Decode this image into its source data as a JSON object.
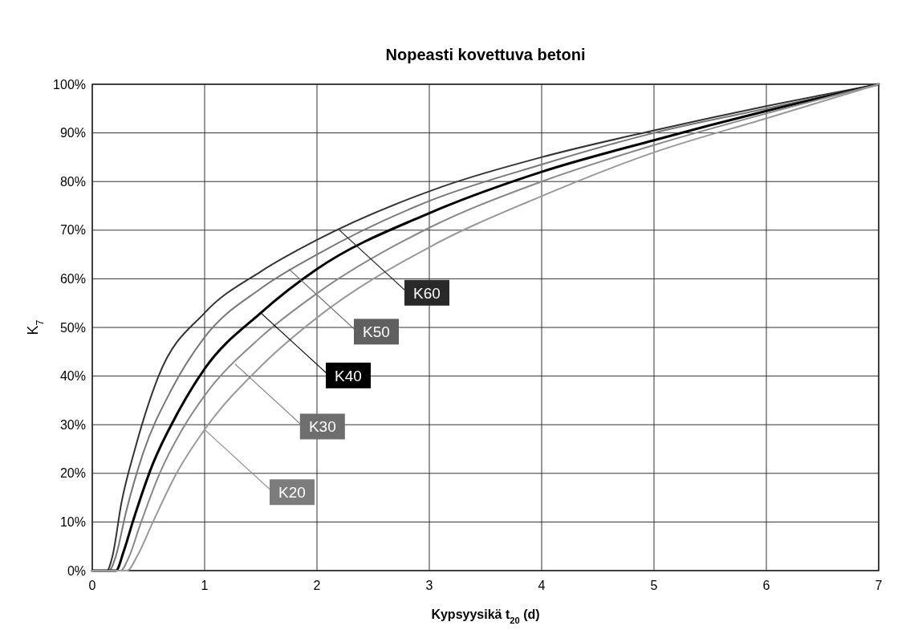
{
  "chart_data": {
    "type": "line",
    "title": "Nopeasti kovettuva betoni",
    "xlabel": "Kypsyysikä t$_{20}$ (d)",
    "ylabel": "K$_{7}$",
    "xlim": [
      0,
      7
    ],
    "xticks": [
      0,
      1,
      2,
      3,
      4,
      5,
      6,
      7
    ],
    "ylim": [
      0,
      100
    ],
    "yticks": [
      {
        "value": 0,
        "label": "0%"
      },
      {
        "value": 10,
        "label": "10%"
      },
      {
        "value": 20,
        "label": "20%"
      },
      {
        "value": 30,
        "label": "30%"
      },
      {
        "value": 40,
        "label": "40%"
      },
      {
        "value": 50,
        "label": "50%"
      },
      {
        "value": 60,
        "label": "60%"
      },
      {
        "value": 70,
        "label": "70%"
      },
      {
        "value": 80,
        "label": "80%"
      },
      {
        "value": 90,
        "label": "90%"
      },
      {
        "value": 100,
        "label": "100%"
      }
    ],
    "grid": true,
    "line_style": "solid",
    "marker": "none",
    "series": [
      {
        "color": "#333333",
        "x": [
          0,
          0.13,
          0.18,
          0.26,
          0.38,
          0.59,
          1,
          1.5,
          2,
          3,
          4,
          5,
          6,
          7
        ],
        "values": [
          0,
          0,
          3,
          14,
          25,
          40,
          53,
          61.5,
          68,
          78,
          85,
          90.5,
          95.5,
          100
        ]
      },
      {
        "color": "#777777",
        "x": [
          0,
          0.15,
          0.21,
          0.3,
          0.45,
          0.7,
          1,
          1.5,
          2,
          3,
          4,
          5,
          6,
          7
        ],
        "values": [
          0,
          0,
          3,
          12,
          24,
          37,
          48,
          58,
          65,
          76,
          83.5,
          90,
          95,
          100
        ]
      },
      {
        "color": "#000000",
        "x": [
          0,
          0.21,
          0.28,
          0.36,
          0.54,
          0.75,
          1,
          1.5,
          2,
          3,
          4,
          5,
          6,
          7
        ],
        "values": [
          0,
          0,
          4,
          10,
          22,
          32,
          41.5,
          53,
          62,
          73.5,
          82,
          88.5,
          94.5,
          100
        ]
      },
      {
        "color": "#888888",
        "x": [
          0,
          0.25,
          0.33,
          0.42,
          0.6,
          0.8,
          1,
          1.5,
          2,
          3,
          4,
          5,
          6,
          7
        ],
        "values": [
          0,
          0,
          3,
          9,
          20,
          29,
          36,
          48,
          57,
          70.5,
          80,
          87.5,
          94,
          100
        ]
      },
      {
        "color": "#999999",
        "x": [
          0,
          0.31,
          0.4,
          0.54,
          0.75,
          1,
          1.5,
          2,
          3,
          4,
          5,
          6,
          7
        ],
        "values": [
          0,
          0,
          3,
          10,
          20,
          29,
          42,
          52,
          66.5,
          77,
          86,
          93,
          100
        ]
      }
    ],
    "annotations": [
      {
        "text": "K60",
        "x": 2.2,
        "y": 70
      },
      {
        "text": "K50",
        "x": 1.75,
        "y": 62
      },
      {
        "text": "K40",
        "x": 1.5,
        "y": 53
      },
      {
        "text": "K30",
        "x": 1.27,
        "y": 42.5
      },
      {
        "text": "K20",
        "x": 1,
        "y": 29
      }
    ]
  }
}
